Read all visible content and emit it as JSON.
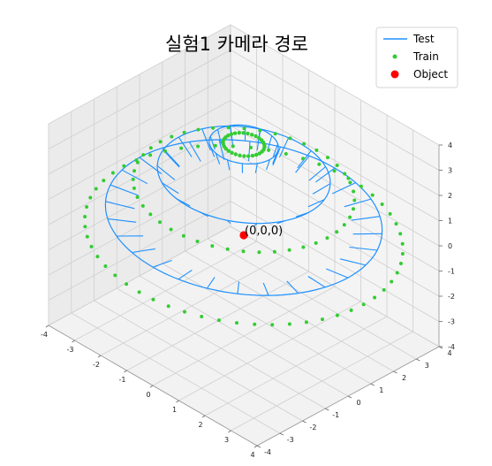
{
  "chart_data": {
    "type": "3d-scatter-line",
    "title": "실험1 카메라 경로",
    "xlim": [
      -4,
      4
    ],
    "ylim": [
      -4,
      4
    ],
    "zlim": [
      -4,
      4
    ],
    "x_ticks": [
      "-4",
      "-3",
      "-2",
      "-1",
      "0",
      "1",
      "2",
      "3",
      "4"
    ],
    "y_ticks": [
      "-4",
      "-3",
      "-2",
      "-1",
      "0",
      "1",
      "2",
      "3",
      "4"
    ],
    "z_ticks": [
      "-4",
      "-3",
      "-2",
      "-1",
      "0",
      "1",
      "2",
      "3",
      "4"
    ],
    "grid": true,
    "legend_position": "top-right",
    "legend": [
      {
        "label": "Test",
        "kind": "line",
        "color": "#1e90ff"
      },
      {
        "label": "Train",
        "kind": "dot",
        "color": "#33cc33"
      },
      {
        "label": "Object",
        "kind": "dot",
        "color": "#ff0000"
      }
    ],
    "series": [
      {
        "name": "Test",
        "kind": "line-rings",
        "color": "#1e90ff",
        "rings": [
          {
            "radius": 4.0,
            "z": 0.7
          },
          {
            "radius": 2.5,
            "z": 2.4
          },
          {
            "radius": 1.0,
            "z": 3.6
          }
        ]
      },
      {
        "name": "Train",
        "kind": "scatter-rings",
        "color": "#33cc33",
        "rings": [
          {
            "radius": 4.6,
            "z": 0.0,
            "count": 56
          },
          {
            "radius": 3.2,
            "z": 1.8,
            "count": 44
          },
          {
            "radius": 0.6,
            "z": 3.6,
            "count": 30
          }
        ]
      },
      {
        "name": "Object",
        "kind": "point",
        "color": "#ff0000",
        "x": 0,
        "y": 0,
        "z": 0
      }
    ],
    "annotations": [
      {
        "text": "(0,0,0)",
        "x": 0,
        "y": 0,
        "z": 0
      }
    ]
  }
}
